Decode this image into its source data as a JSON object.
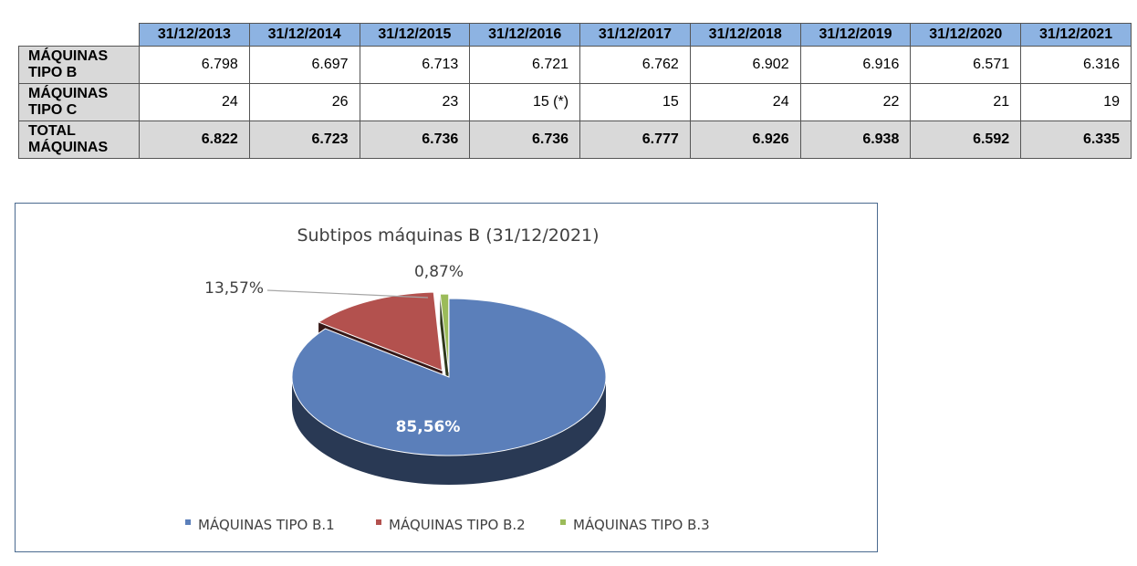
{
  "table": {
    "headers": [
      "31/12/2013",
      "31/12/2014",
      "31/12/2015",
      "31/12/2016",
      "31/12/2017",
      "31/12/2018",
      "31/12/2019",
      "31/12/2020",
      "31/12/2021"
    ],
    "rows": [
      {
        "label_line1": "MÁQUINAS",
        "label_line2": "TIPO B",
        "values": [
          "6.798",
          "6.697",
          "6.713",
          "6.721",
          "6.762",
          "6.902",
          "6.916",
          "6.571",
          "6.316"
        ]
      },
      {
        "label_line1": "MÁQUINAS",
        "label_line2": "TIPO C",
        "values": [
          "24",
          "26",
          "23",
          "15 (*)",
          "15",
          "24",
          "22",
          "21",
          "19"
        ]
      },
      {
        "label_line1": "TOTAL",
        "label_line2": "MÁQUINAS",
        "values": [
          "6.822",
          "6.723",
          "6.736",
          "6.736",
          "6.777",
          "6.926",
          "6.938",
          "6.592",
          "6.335"
        ]
      }
    ]
  },
  "colors": {
    "header_bg": "#8db3e2",
    "row_label_bg": "#d9d9d9",
    "slice_b1": "#5b7fba",
    "slice_b2": "#b3514e",
    "slice_b3": "#9bbb59"
  },
  "chart_data": {
    "type": "pie",
    "title": "Subtipos máquinas B (31/12/2021)",
    "labels": [
      "MÁQUINAS TIPO B.1",
      "MÁQUINAS TIPO B.2",
      "MÁQUINAS TIPO B.3"
    ],
    "values": [
      85.56,
      13.57,
      0.87
    ],
    "data_labels": [
      "85,56%",
      "13,57%",
      "0,87%"
    ],
    "legend_position": "bottom",
    "style": "3d-exploded"
  }
}
